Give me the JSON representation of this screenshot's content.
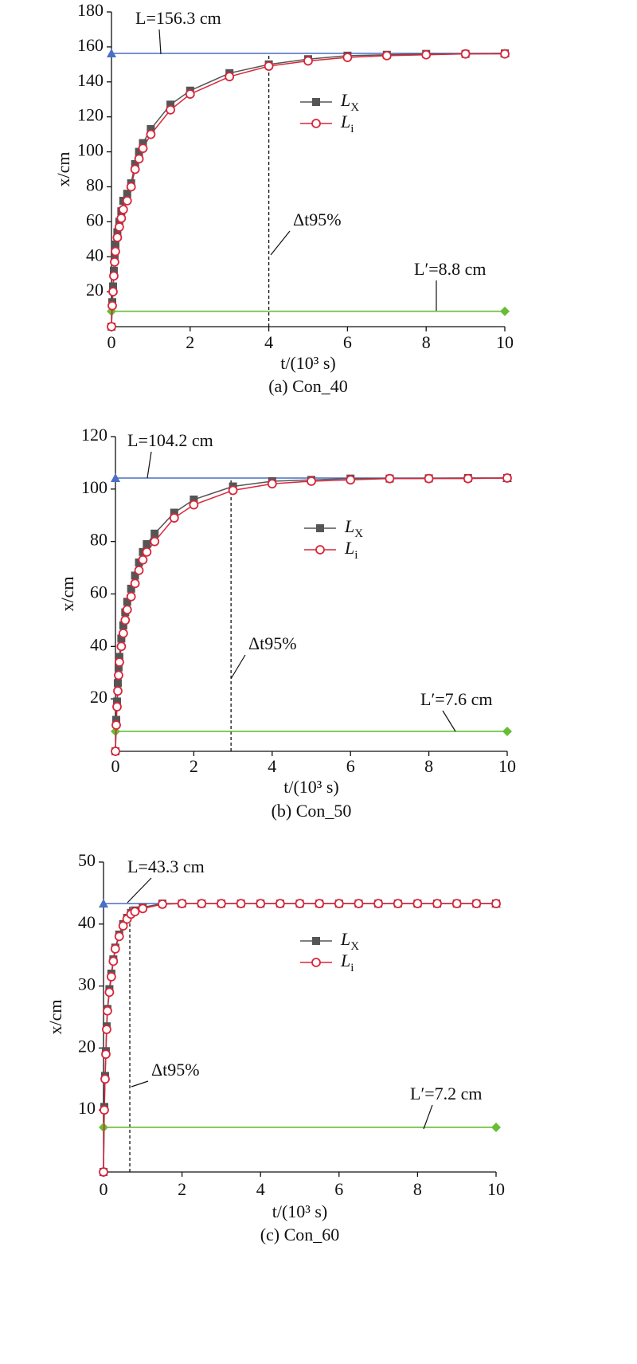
{
  "chart_data": [
    {
      "type": "line",
      "caption": "(a) Con_40",
      "x_label": "t/(10³ s)",
      "y_label": "x/cm",
      "x": [
        0,
        0.02,
        0.04,
        0.06,
        0.08,
        0.1,
        0.15,
        0.2,
        0.25,
        0.3,
        0.4,
        0.5,
        0.6,
        0.7,
        0.8,
        1,
        1.5,
        2,
        3,
        4,
        5,
        6,
        7,
        8,
        9,
        10
      ],
      "series": [
        {
          "name": "LX",
          "color": "#555555",
          "marker": "square",
          "values": [
            0,
            14,
            23,
            32,
            40,
            47,
            54,
            60,
            66,
            72,
            76,
            82,
            93,
            100,
            105,
            113,
            127,
            135,
            145,
            150,
            153,
            155,
            155.5,
            156,
            156,
            156.3
          ]
        },
        {
          "name": "Li",
          "color": "#d9263a",
          "marker": "circle",
          "values": [
            0,
            12,
            20,
            29,
            37,
            43,
            51,
            57,
            62,
            67,
            72,
            80,
            90,
            96,
            102,
            110,
            124,
            133,
            143,
            149,
            152,
            154,
            155,
            155.5,
            156,
            156
          ]
        }
      ],
      "hlines": [
        {
          "value": 156.3,
          "label": "L=156.3 cm",
          "color": "#4a6fc7",
          "marker": "triangle"
        },
        {
          "value": 8.8,
          "label": "L′=8.8 cm",
          "color": "#69bd35",
          "marker": "diamond"
        }
      ],
      "vline": {
        "value": 4,
        "label": "Δt95%"
      },
      "xlim": [
        0,
        10
      ],
      "ylim": [
        0,
        180
      ],
      "xticks": [
        0,
        2,
        4,
        6,
        8,
        10
      ],
      "yticks": [
        20,
        40,
        60,
        80,
        100,
        120,
        140,
        160,
        180
      ]
    },
    {
      "type": "line",
      "caption": "(b) Con_50",
      "x_label": "t/(10³ s)",
      "y_label": "x/cm",
      "x": [
        0,
        0.02,
        0.04,
        0.06,
        0.08,
        0.1,
        0.15,
        0.2,
        0.25,
        0.3,
        0.4,
        0.5,
        0.6,
        0.7,
        0.8,
        1,
        1.5,
        2,
        3,
        4,
        5,
        6,
        7,
        8,
        9,
        10
      ],
      "series": [
        {
          "name": "LX",
          "color": "#555555",
          "marker": "square",
          "values": [
            0,
            12,
            19,
            26,
            32,
            36,
            43,
            48,
            53,
            57,
            62,
            67,
            72,
            76,
            79,
            83,
            91,
            96,
            101,
            103,
            103.5,
            104,
            104,
            104.1,
            104.2,
            104.2
          ]
        },
        {
          "name": "Li",
          "color": "#d9263a",
          "marker": "circle",
          "values": [
            0,
            10,
            17,
            23,
            29,
            34,
            40,
            45,
            50,
            54,
            59,
            64,
            69,
            73,
            76,
            80,
            89,
            94,
            99.5,
            102,
            103,
            103.5,
            104,
            104,
            104,
            104.2
          ]
        }
      ],
      "hlines": [
        {
          "value": 104.2,
          "label": "L=104.2 cm",
          "color": "#4a6fc7",
          "marker": "triangle"
        },
        {
          "value": 7.6,
          "label": "L′=7.6 cm",
          "color": "#69bd35",
          "marker": "diamond"
        }
      ],
      "vline": {
        "value": 2.95,
        "label": "Δt95%"
      },
      "xlim": [
        0,
        10
      ],
      "ylim": [
        0,
        120
      ],
      "xticks": [
        0,
        2,
        4,
        6,
        8,
        10
      ],
      "yticks": [
        20,
        40,
        60,
        80,
        100,
        120
      ]
    },
    {
      "type": "line",
      "caption": "(c) Con_60",
      "x_label": "t/(10³ s)",
      "y_label": "x/cm",
      "x": [
        0,
        0.02,
        0.04,
        0.06,
        0.08,
        0.1,
        0.15,
        0.2,
        0.25,
        0.3,
        0.4,
        0.5,
        0.6,
        0.7,
        0.8,
        1,
        1.5,
        2,
        2.5,
        3,
        3.5,
        4,
        4.5,
        5,
        5.5,
        6,
        6.5,
        7,
        7.5,
        8,
        8.5,
        9,
        9.5,
        10
      ],
      "series": [
        {
          "name": "LX",
          "color": "#555555",
          "marker": "square",
          "values": [
            0,
            10.5,
            15.5,
            19.5,
            23.5,
            26.3,
            29.5,
            32,
            34.3,
            36.2,
            38.3,
            40,
            41,
            41.8,
            42.2,
            42.7,
            43.3,
            43.3,
            43.3,
            43.3,
            43.3,
            43.3,
            43.3,
            43.3,
            43.3,
            43.3,
            43.3,
            43.3,
            43.3,
            43.3,
            43.3,
            43.3,
            43.3,
            43.3
          ]
        },
        {
          "name": "Li",
          "color": "#d9263a",
          "marker": "circle",
          "values": [
            0,
            10,
            15,
            19,
            23,
            26,
            29,
            31.5,
            34,
            36,
            38,
            39.7,
            40.8,
            41.6,
            42,
            42.5,
            43.2,
            43.3,
            43.3,
            43.3,
            43.3,
            43.3,
            43.3,
            43.3,
            43.3,
            43.3,
            43.3,
            43.3,
            43.3,
            43.3,
            43.3,
            43.3,
            43.3,
            43.3
          ]
        }
      ],
      "hlines": [
        {
          "value": 43.3,
          "label": "L=43.3 cm",
          "color": "#4a6fc7",
          "marker": "triangle"
        },
        {
          "value": 7.2,
          "label": "L′=7.2 cm",
          "color": "#69bd35",
          "marker": "diamond"
        }
      ],
      "vline": {
        "value": 0.67,
        "label": "Δt95%"
      },
      "xlim": [
        0,
        10
      ],
      "ylim": [
        0,
        50
      ],
      "xticks": [
        0,
        2,
        4,
        6,
        8,
        10
      ],
      "yticks": [
        10,
        20,
        30,
        40,
        50
      ]
    }
  ]
}
